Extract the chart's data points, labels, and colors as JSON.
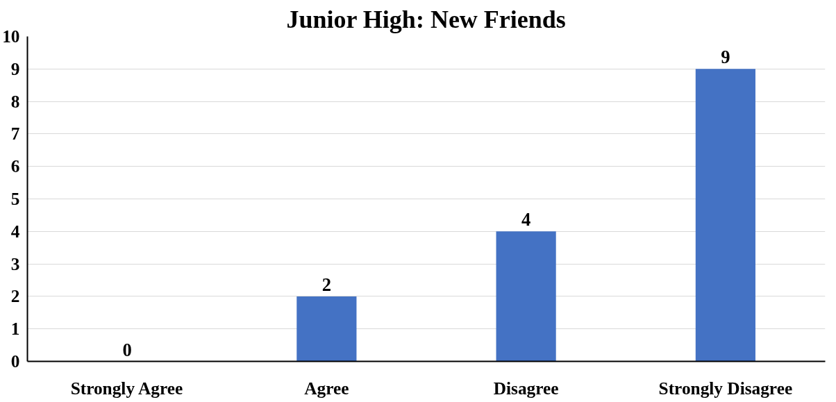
{
  "chart_data": {
    "type": "bar",
    "title": "Junior High: New Friends",
    "categories": [
      "Strongly Agree",
      "Agree",
      "Disagree",
      "Strongly Disagree"
    ],
    "values": [
      0,
      2,
      4,
      9
    ],
    "color": "#4472c4",
    "ylim": [
      0,
      10
    ],
    "yticks": [
      0,
      1,
      2,
      3,
      4,
      5,
      6,
      7,
      8,
      9,
      10
    ],
    "grid": "y",
    "data_labels": true
  }
}
